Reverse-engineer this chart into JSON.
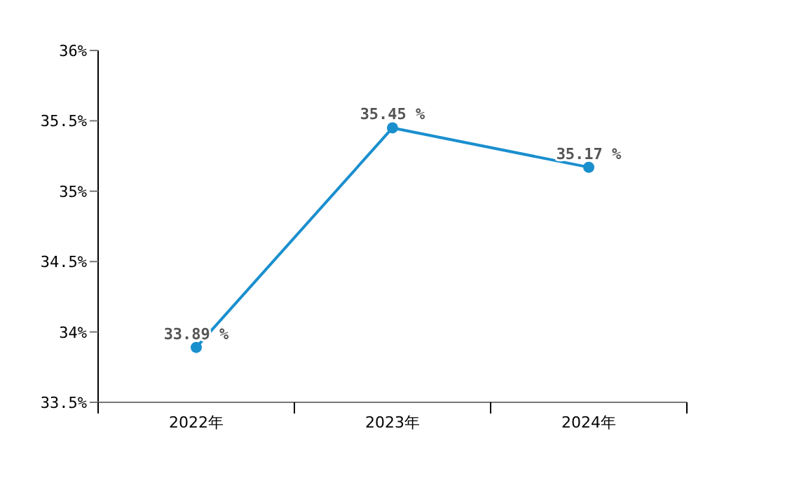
{
  "chart_data": {
    "type": "line",
    "categories": [
      "2022年",
      "2023年",
      "2024年"
    ],
    "series": [
      {
        "color": "#1a8fce",
        "values": [
          33.89,
          35.45,
          35.17
        ],
        "value_labels": [
          "33.89 %",
          "35.45 %",
          "35.17 %"
        ]
      }
    ],
    "ylim": [
      33.5,
      36
    ],
    "yticks": [
      {
        "value": 33.5,
        "label": "33.5%"
      },
      {
        "value": 34,
        "label": "34%"
      },
      {
        "value": 34.5,
        "label": "34.5%"
      },
      {
        "value": 35,
        "label": "35%"
      },
      {
        "value": 35.5,
        "label": "35.5%"
      },
      {
        "value": 36,
        "label": "36%"
      }
    ],
    "marker": "circle",
    "line_style": "solid"
  }
}
